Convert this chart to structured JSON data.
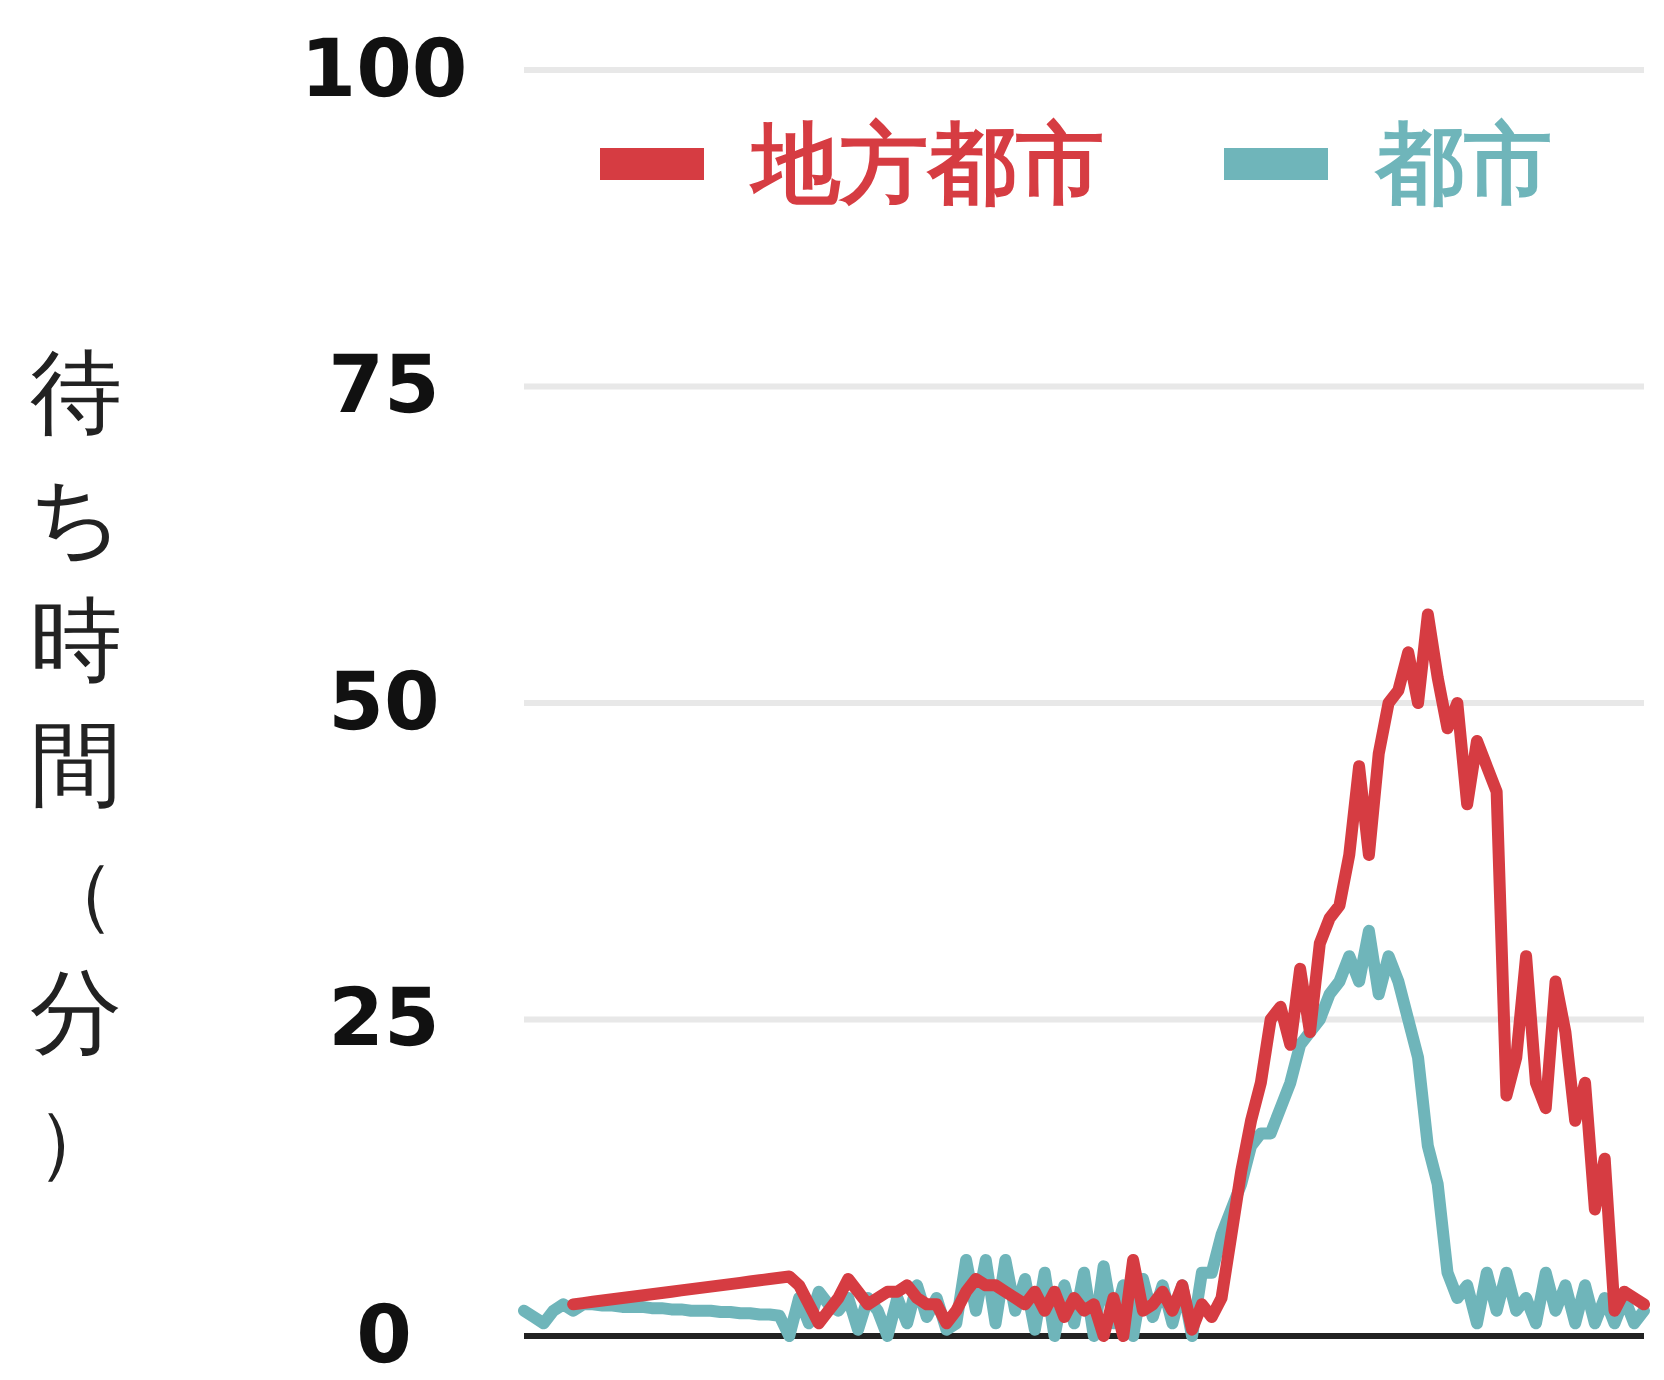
{
  "chart_data": {
    "type": "line",
    "ylabel": "待ち時間（分）",
    "ylim": [
      0,
      100
    ],
    "yticks": [
      0,
      25,
      50,
      75,
      100
    ],
    "grid": "y",
    "legend": "top left",
    "tick_labels": "y",
    "marker": "none",
    "line_style": "solid",
    "categories": [
      null,
      null,
      null,
      null,
      null,
      null,
      null,
      null,
      null,
      null,
      null,
      null,
      null,
      null,
      null,
      null,
      null,
      null,
      null,
      null,
      null,
      null,
      null,
      null,
      null,
      null,
      null,
      null,
      null,
      null,
      null,
      null,
      null,
      null,
      null,
      null,
      null,
      null,
      null,
      null,
      null,
      null,
      null,
      null,
      null,
      null,
      null,
      null,
      null,
      null,
      null,
      null,
      null,
      null,
      null,
      null,
      null,
      null,
      null,
      null,
      null,
      null,
      null,
      null,
      null,
      null,
      null,
      null,
      null,
      null,
      null,
      null,
      null,
      null,
      null,
      null,
      null,
      null,
      null,
      null,
      null,
      null,
      null,
      null,
      null,
      null,
      null,
      null,
      null,
      null,
      null,
      null,
      null,
      null,
      null,
      null,
      null,
      null,
      null,
      null,
      null,
      null,
      null,
      null,
      null,
      null,
      null,
      null,
      null,
      null,
      null,
      null,
      null,
      null,
      null
    ],
    "series": [
      {
        "name": "都市",
        "color": "#6fb5ba",
        "values": [
          2,
          1.5,
          1,
          2,
          2.5,
          2,
          2.5,
          2.5,
          2.4,
          2.4,
          2.3,
          2.3,
          2.3,
          2.2,
          2.2,
          2.1,
          2.1,
          2,
          2,
          2,
          1.9,
          1.9,
          1.8,
          1.8,
          1.7,
          1.7,
          1.6,
          0,
          3,
          1,
          3.5,
          2.5,
          2,
          3,
          0.5,
          3,
          2,
          0,
          3,
          1,
          4,
          1.5,
          3,
          0.5,
          1,
          6,
          2,
          6,
          1,
          6,
          2,
          4.5,
          0.5,
          5,
          0,
          4,
          1,
          5,
          0,
          5.5,
          1,
          4,
          0,
          4.5,
          1.5,
          4,
          1,
          4,
          0,
          5,
          5,
          8,
          10,
          12,
          15,
          16,
          16,
          18,
          20,
          23,
          24,
          25,
          27,
          28,
          30,
          28,
          32,
          27,
          30,
          28,
          25,
          22,
          15,
          12,
          5,
          3,
          4,
          1,
          5,
          2,
          5,
          2,
          3,
          1,
          5,
          2,
          4,
          1,
          4,
          1,
          3,
          1,
          3,
          1,
          2
        ]
      },
      {
        "name": "地方都市",
        "color": "#d63c42",
        "values": [
          null,
          null,
          null,
          null,
          null,
          2.5,
          2.6,
          2.7,
          2.8,
          2.9,
          3,
          3.1,
          3.2,
          3.3,
          3.4,
          3.5,
          3.6,
          3.7,
          3.8,
          3.9,
          4,
          4.1,
          4.2,
          4.3,
          4.4,
          4.5,
          4.6,
          4.7,
          4,
          2.5,
          1,
          2,
          3,
          4.5,
          3.5,
          2.5,
          3,
          3.5,
          3.5,
          4,
          3,
          2.5,
          2.5,
          1,
          2,
          3.5,
          4.5,
          4,
          4,
          3.5,
          3,
          2.5,
          3.5,
          2,
          3.5,
          1.5,
          3,
          2,
          2.5,
          0,
          3,
          0,
          6,
          2,
          2.5,
          3.5,
          2,
          4,
          0.5,
          2.5,
          1.5,
          3,
          8,
          13,
          17,
          20,
          25,
          26,
          23,
          29,
          24,
          31,
          33,
          34,
          38,
          45,
          38,
          46,
          50,
          51,
          54,
          50,
          57,
          52,
          48,
          50,
          42,
          47,
          45,
          43,
          19,
          22,
          30,
          20,
          18,
          28,
          24,
          17,
          20,
          10,
          14,
          2,
          3.5,
          3,
          2.5
        ]
      }
    ]
  }
}
